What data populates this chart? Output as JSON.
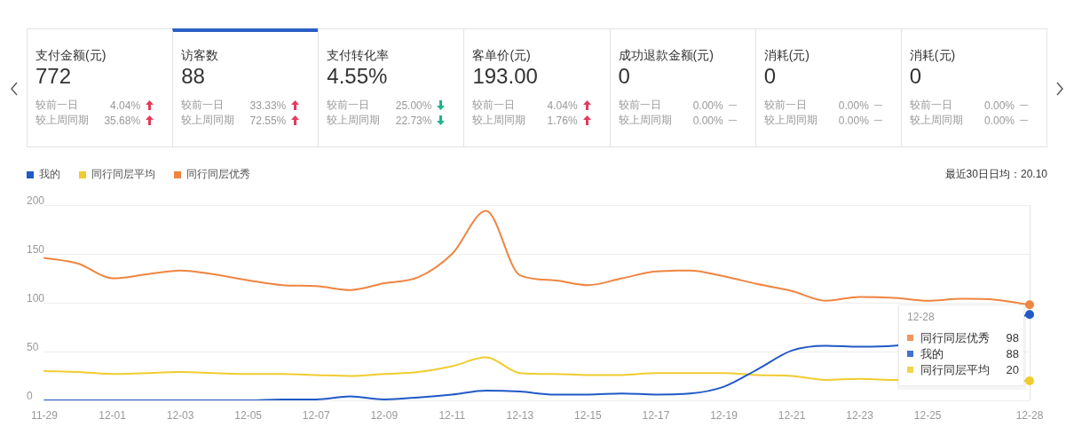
{
  "chart_data": [
    {
      "type": "other",
      "categories": [
        "支付金额(元)",
        "访客数",
        "支付转化率",
        "客单价(元)",
        "成功退款金额(元)",
        "消耗(元)",
        "消耗(元)"
      ],
      "value_labels": [
        "772",
        "88",
        "4.55%",
        "193.00",
        "0",
        "0",
        "0"
      ],
      "series": [
        {
          "name": "较前一日",
          "values": [
            4.04,
            33.33,
            25.0,
            4.04,
            0,
            0,
            0
          ],
          "value_labels": [
            "4.04%",
            "33.33%",
            "25.00%",
            "4.04%",
            "0.00%",
            "0.00%",
            "0.00%"
          ],
          "colors": [
            "#e33b5c",
            "#e33b5c",
            "#20b38b",
            "#e33b5c",
            "#b0b0b0",
            "#b0b0b0",
            "#b0b0b0"
          ]
        },
        {
          "name": "较上周同期",
          "values": [
            35.68,
            72.55,
            22.73,
            1.76,
            0,
            0,
            0
          ],
          "value_labels": [
            "35.68%",
            "72.55%",
            "22.73%",
            "1.76%",
            "0.00%",
            "0.00%",
            "0.00%"
          ],
          "colors": [
            "#e33b5c",
            "#e33b5c",
            "#20b38b",
            "#e33b5c",
            "#b0b0b0",
            "#b0b0b0",
            "#b0b0b0"
          ]
        }
      ]
    },
    {
      "type": "line",
      "legend": "top left",
      "grid": "y",
      "marker": "none",
      "line_style": "solid",
      "categories": [
        "11-29",
        null,
        "12-01",
        null,
        "12-03",
        null,
        "12-05",
        null,
        "12-07",
        null,
        "12-09",
        null,
        "12-11",
        null,
        "12-13",
        null,
        "12-15",
        null,
        "12-17",
        null,
        "12-19",
        null,
        "12-21",
        null,
        "12-23",
        null,
        "12-25",
        null,
        null,
        "12-28"
      ],
      "ylim": [
        0,
        200
      ],
      "yticks": [
        0,
        50,
        100,
        150,
        200
      ],
      "series": [
        {
          "name": "我的",
          "color": "#2159c6",
          "values": [
            0,
            0,
            0,
            0,
            0,
            0,
            0,
            1,
            1,
            4,
            1,
            3,
            6,
            10,
            9,
            6,
            6,
            7,
            6,
            7,
            14,
            32,
            51,
            56,
            55,
            56,
            null,
            null,
            null,
            88
          ],
          "value_labels": [
            null,
            null,
            null,
            null,
            null,
            null,
            null,
            null,
            null,
            null,
            null,
            null,
            null,
            null,
            null,
            null,
            null,
            null,
            null,
            null,
            null,
            null,
            null,
            null,
            null,
            null,
            null,
            null,
            null,
            "88"
          ]
        },
        {
          "name": "同行同层平均",
          "color": "#f0cc30",
          "values": [
            30,
            29,
            27,
            28,
            29,
            28,
            27,
            27,
            26,
            25,
            27,
            29,
            35,
            44,
            28,
            27,
            26,
            26,
            28,
            28,
            28,
            26,
            25,
            21,
            22,
            21,
            null,
            null,
            null,
            20
          ],
          "value_labels": [
            null,
            null,
            null,
            null,
            null,
            null,
            null,
            null,
            null,
            null,
            null,
            null,
            null,
            null,
            null,
            null,
            null,
            null,
            null,
            null,
            null,
            null,
            null,
            null,
            null,
            null,
            null,
            null,
            null,
            "20"
          ]
        },
        {
          "name": "同行同层优秀",
          "color": "#ef8540",
          "values": [
            146,
            140,
            125,
            129,
            133,
            129,
            123,
            118,
            117,
            113,
            120,
            126,
            150,
            194,
            128,
            123,
            118,
            125,
            132,
            133,
            127,
            119,
            112,
            102,
            106,
            105,
            102,
            104,
            103,
            98
          ],
          "value_labels": [
            null,
            null,
            null,
            null,
            null,
            null,
            null,
            null,
            null,
            null,
            null,
            null,
            null,
            null,
            null,
            null,
            null,
            null,
            null,
            null,
            null,
            null,
            null,
            null,
            null,
            null,
            null,
            null,
            null,
            "98"
          ]
        }
      ],
      "annotations": [
        "最近30日日均：20.10",
        "12-28"
      ]
    }
  ]
}
